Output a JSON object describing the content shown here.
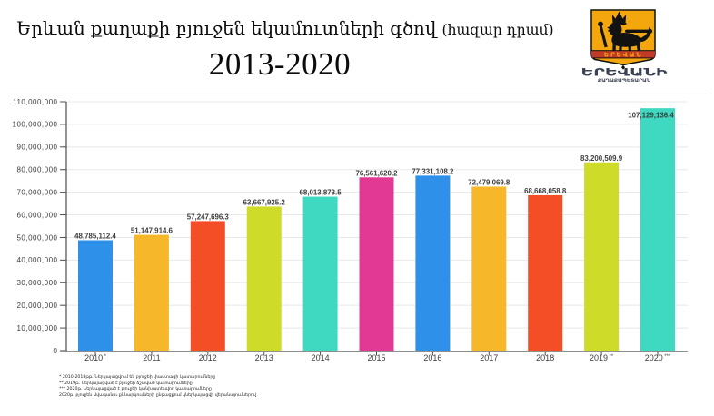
{
  "page": {
    "background": "#ffffff"
  },
  "header": {
    "title_line1_main": "Երևան քաղաքի բյուջեն եկամուտների գծով ",
    "title_line1_paren": "(հազար դրամ)",
    "title_line2": "2013-2020"
  },
  "logo": {
    "shield_banner_text": "ԵՐԵՎԱՆ",
    "org_name": "ԵՐԵՎԱՆԻ",
    "org_subtitle": "ՔԱՂԱՔԱՊԵՏԱՐԱՆ",
    "shield_color": "#F3A70C",
    "banner_color": "#C13A2A",
    "emblem_ink": "#121212",
    "wordmark_color": "#3A4152"
  },
  "chart_data": {
    "type": "bar",
    "title": "Երևան քաղաքի բյուջեն եկամուտների գծով (հազար դրամ) 2013-2020",
    "xlabel": "",
    "ylabel": "",
    "categories": [
      "2010",
      "2011",
      "2012",
      "2013",
      "2014",
      "2015",
      "2016",
      "2017",
      "2018",
      "2019",
      "2020"
    ],
    "category_marks": [
      "*",
      "",
      "",
      "",
      "",
      "",
      "",
      "",
      "",
      "**",
      "***"
    ],
    "values": [
      48785112.4,
      51147914.6,
      57247696.3,
      63667925.2,
      68013873.5,
      76561620.2,
      77331108.2,
      72479069.8,
      68668058.8,
      83200509.9,
      107129136.4
    ],
    "value_labels": [
      "48,785,112.4",
      "51,147,914.6",
      "57,247,696.3",
      "63,667,925.2",
      "68,013,873.5",
      "76,561,620.2",
      "77,331,108.2",
      "72,479,069.8",
      "68,668,058.8",
      "83,200,509.9",
      "107,129,136.4"
    ],
    "bar_colors": [
      "#2E90E9",
      "#F7B72A",
      "#F44E27",
      "#CEDB29",
      "#3FD9C1",
      "#E23995",
      "#2E90E9",
      "#F7B72A",
      "#F44E27",
      "#CEDB29",
      "#3FD9C1"
    ],
    "ylim": [
      0,
      110000000
    ],
    "ytick_step": 10000000,
    "grid": true,
    "legend": false,
    "label_color": "#3D3D3D",
    "tick_label_color": "#3C3C3C",
    "axis_color": "#4D4D4D",
    "baseline_color": "#8E8E8E",
    "grid_color": "#E8E8E8"
  },
  "footnotes": [
    "* 2010-2018թթ. Ներկայացվում են բյուջեի փաստացի կատարումները",
    "** 2019թ. Ներկայացված է բյուջեի ճշտված կատարումները",
    "*** 2020թ. Ներկայացված է բյուջեի կանխատեսվող կատարումները",
    "2020թ. բյուջեն Ավագանու քննարկումների ընթացքում կներկայացվի վերանայումներով"
  ]
}
